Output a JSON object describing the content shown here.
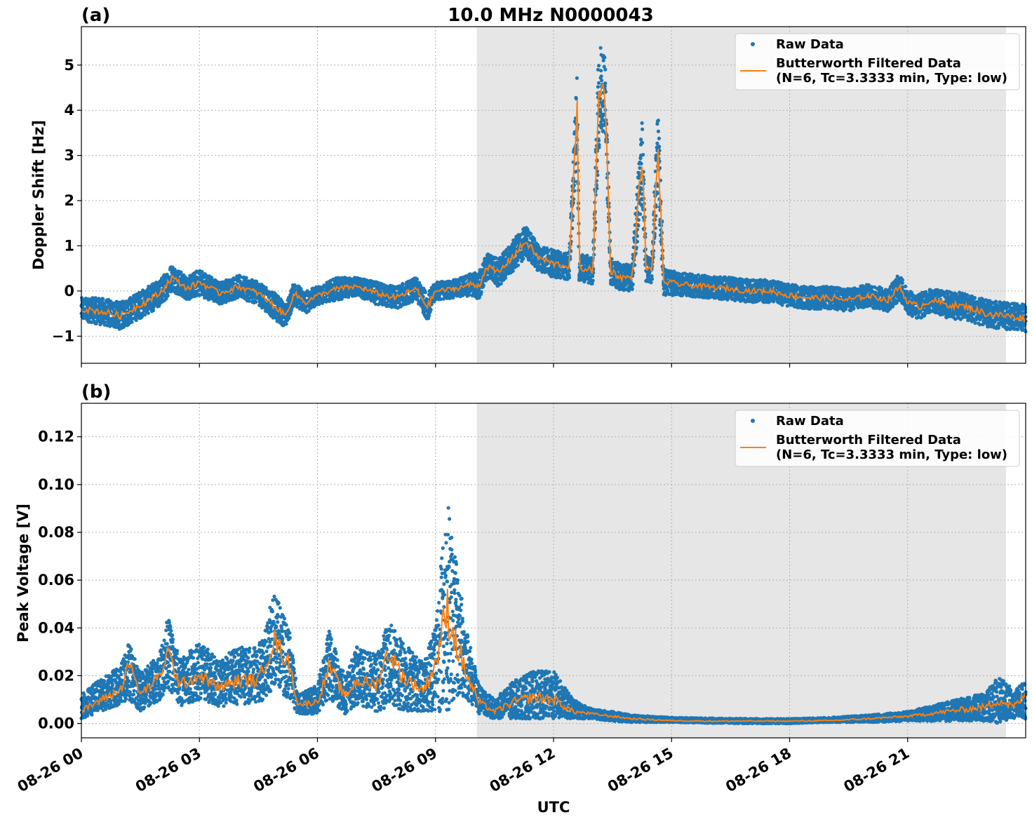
{
  "figure": {
    "title": "10.0 MHz N0000043",
    "xlabel": "UTC"
  },
  "chart_data": [
    {
      "type": "scatter",
      "panel_label": "(a)",
      "title": "10.0 MHz N0000043",
      "ylabel": "Doppler Shift [Hz]",
      "xlabel": "",
      "xlim": [
        0,
        24
      ],
      "ylim": [
        -1.6,
        5.85
      ],
      "yticks": [
        -1,
        0,
        1,
        2,
        3,
        4,
        5
      ],
      "ytick_labels": [
        "−1",
        "0",
        "1",
        "2",
        "3",
        "4",
        "5"
      ],
      "grid": true,
      "legend_placement": "top-right",
      "shaded_span_hours": [
        10.05,
        23.5
      ],
      "series": [
        {
          "name": "Raw Data",
          "kind": "points",
          "color": "#1f77b4",
          "x_hours": [
            0.0,
            0.5,
            1.0,
            1.5,
            2.0,
            2.3,
            2.7,
            3.0,
            3.5,
            4.0,
            4.5,
            5.0,
            5.2,
            5.4,
            5.7,
            6.0,
            6.5,
            7.0,
            7.5,
            8.0,
            8.5,
            8.8,
            9.0,
            9.5,
            9.9,
            10.1,
            10.3,
            10.6,
            11.0,
            11.3,
            11.6,
            12.0,
            12.4,
            12.6,
            12.65,
            12.8,
            13.0,
            13.15,
            13.3,
            13.45,
            13.7,
            14.0,
            14.25,
            14.35,
            14.5,
            14.65,
            14.8,
            15.2,
            15.8,
            16.5,
            17.0,
            17.5,
            18.0,
            18.5,
            19.0,
            19.5,
            20.0,
            20.5,
            20.8,
            21.0,
            21.3,
            21.6,
            22.0,
            22.5,
            23.0,
            23.5,
            24.0
          ],
          "y_hz": [
            -0.4,
            -0.45,
            -0.55,
            -0.3,
            -0.05,
            0.3,
            0.05,
            0.2,
            -0.05,
            0.1,
            -0.05,
            -0.4,
            -0.55,
            -0.05,
            -0.25,
            -0.1,
            0.05,
            0.1,
            -0.05,
            -0.15,
            0.05,
            -0.35,
            0.0,
            0.05,
            0.15,
            0.1,
            0.55,
            0.4,
            0.8,
            1.1,
            0.75,
            0.6,
            0.55,
            4.1,
            0.5,
            0.5,
            0.45,
            4.3,
            4.6,
            0.45,
            0.3,
            0.3,
            3.0,
            0.5,
            0.45,
            3.2,
            0.2,
            0.15,
            0.1,
            0.05,
            0.0,
            0.0,
            -0.1,
            -0.15,
            -0.15,
            -0.2,
            -0.1,
            -0.2,
            0.1,
            -0.25,
            -0.35,
            -0.2,
            -0.3,
            -0.35,
            -0.5,
            -0.55,
            -0.6
          ],
          "spread_hz": [
            0.25,
            0.3,
            0.3,
            0.3,
            0.3,
            0.3,
            0.25,
            0.3,
            0.25,
            0.25,
            0.25,
            0.3,
            0.25,
            0.25,
            0.25,
            0.2,
            0.25,
            0.2,
            0.25,
            0.25,
            0.25,
            0.3,
            0.2,
            0.2,
            0.25,
            0.3,
            0.3,
            0.3,
            0.35,
            0.35,
            0.3,
            0.3,
            0.3,
            0.9,
            0.3,
            0.3,
            0.3,
            1.2,
            0.9,
            0.3,
            0.3,
            0.3,
            1.0,
            0.3,
            0.3,
            1.0,
            0.3,
            0.25,
            0.25,
            0.25,
            0.25,
            0.25,
            0.25,
            0.25,
            0.25,
            0.25,
            0.25,
            0.25,
            0.3,
            0.25,
            0.3,
            0.25,
            0.3,
            0.3,
            0.3,
            0.3,
            0.3
          ]
        },
        {
          "name": "Butterworth Filtered Data\n(N=6, Tc=3.3333 min, Type: low)",
          "legend_lines": [
            "Butterworth Filtered Data",
            "(N=6, Tc=3.3333 min, Type: low)"
          ],
          "kind": "line",
          "color": "#ff7f0e",
          "x_hours": [
            0.0,
            0.5,
            1.0,
            1.5,
            2.0,
            2.3,
            2.7,
            3.0,
            3.5,
            4.0,
            4.5,
            5.0,
            5.2,
            5.4,
            5.7,
            6.0,
            6.5,
            7.0,
            7.5,
            8.0,
            8.5,
            8.8,
            9.0,
            9.5,
            9.9,
            10.1,
            10.3,
            10.6,
            11.0,
            11.3,
            11.6,
            12.0,
            12.4,
            12.6,
            12.65,
            12.8,
            13.0,
            13.15,
            13.3,
            13.45,
            13.7,
            14.0,
            14.25,
            14.35,
            14.5,
            14.65,
            14.8,
            15.2,
            15.8,
            16.5,
            17.0,
            17.5,
            18.0,
            18.5,
            19.0,
            19.5,
            20.0,
            20.5,
            20.8,
            21.0,
            21.3,
            21.6,
            22.0,
            22.5,
            23.0,
            23.5,
            24.0
          ],
          "y_hz": [
            -0.4,
            -0.45,
            -0.55,
            -0.3,
            -0.05,
            0.3,
            0.05,
            0.2,
            -0.05,
            0.1,
            -0.05,
            -0.4,
            -0.55,
            -0.05,
            -0.25,
            -0.1,
            0.05,
            0.1,
            -0.05,
            -0.15,
            0.05,
            -0.35,
            0.0,
            0.05,
            0.15,
            0.1,
            0.55,
            0.4,
            0.8,
            1.1,
            0.75,
            0.6,
            0.55,
            4.1,
            0.5,
            0.5,
            0.45,
            4.3,
            4.6,
            0.45,
            0.3,
            0.3,
            3.0,
            0.5,
            0.45,
            3.2,
            0.2,
            0.15,
            0.1,
            0.05,
            0.0,
            0.0,
            -0.1,
            -0.15,
            -0.15,
            -0.2,
            -0.1,
            -0.2,
            0.1,
            -0.25,
            -0.35,
            -0.2,
            -0.3,
            -0.35,
            -0.5,
            -0.55,
            -0.6
          ]
        }
      ]
    },
    {
      "type": "scatter",
      "panel_label": "(b)",
      "title": "",
      "ylabel": "Peak Voltage [V]",
      "xlabel": "UTC",
      "xlim": [
        0,
        24
      ],
      "ylim": [
        -0.006,
        0.134
      ],
      "yticks": [
        0.0,
        0.02,
        0.04,
        0.06,
        0.08,
        0.1,
        0.12
      ],
      "ytick_labels": [
        "0.00",
        "0.02",
        "0.04",
        "0.06",
        "0.08",
        "0.10",
        "0.12"
      ],
      "grid": true,
      "legend_placement": "top-right",
      "shaded_span_hours": [
        10.05,
        23.5
      ],
      "series": [
        {
          "name": "Raw Data",
          "kind": "points",
          "color": "#1f77b4",
          "x_hours": [
            0.0,
            0.5,
            1.0,
            1.2,
            1.5,
            2.0,
            2.2,
            2.5,
            3.0,
            3.5,
            4.0,
            4.5,
            4.9,
            5.3,
            5.5,
            6.0,
            6.3,
            6.7,
            7.0,
            7.5,
            7.8,
            8.2,
            8.7,
            9.0,
            9.3,
            9.5,
            9.8,
            10.1,
            10.5,
            11.0,
            11.5,
            12.0,
            12.5,
            13.0,
            13.5,
            14.0,
            15.0,
            16.0,
            17.0,
            18.0,
            19.0,
            20.0,
            21.0,
            21.5,
            22.0,
            22.5,
            23.0,
            23.3,
            23.7,
            24.0
          ],
          "y_v": [
            0.007,
            0.012,
            0.016,
            0.022,
            0.013,
            0.02,
            0.03,
            0.017,
            0.022,
            0.017,
            0.02,
            0.02,
            0.035,
            0.025,
            0.008,
            0.01,
            0.025,
            0.012,
            0.02,
            0.017,
            0.025,
            0.02,
            0.015,
            0.025,
            0.05,
            0.04,
            0.025,
            0.01,
            0.006,
            0.01,
            0.012,
            0.012,
            0.006,
            0.004,
            0.003,
            0.002,
            0.0015,
            0.0012,
            0.001,
            0.001,
            0.0015,
            0.002,
            0.003,
            0.004,
            0.005,
            0.006,
            0.007,
            0.01,
            0.008,
            0.01
          ],
          "spread_v": [
            0.005,
            0.007,
            0.008,
            0.012,
            0.008,
            0.01,
            0.015,
            0.01,
            0.012,
            0.01,
            0.012,
            0.012,
            0.02,
            0.015,
            0.004,
            0.006,
            0.015,
            0.008,
            0.012,
            0.012,
            0.018,
            0.015,
            0.01,
            0.02,
            0.045,
            0.03,
            0.015,
            0.006,
            0.004,
            0.008,
            0.01,
            0.01,
            0.004,
            0.002,
            0.002,
            0.0015,
            0.001,
            0.001,
            0.001,
            0.001,
            0.001,
            0.0015,
            0.002,
            0.003,
            0.004,
            0.005,
            0.006,
            0.01,
            0.006,
            0.008
          ]
        },
        {
          "name": "Butterworth Filtered Data\n(N=6, Tc=3.3333 min, Type: low)",
          "legend_lines": [
            "Butterworth Filtered Data",
            "(N=6, Tc=3.3333 min, Type: low)"
          ],
          "kind": "line",
          "color": "#ff7f0e",
          "x_hours": [
            0.0,
            0.5,
            1.0,
            1.2,
            1.5,
            2.0,
            2.2,
            2.5,
            3.0,
            3.5,
            4.0,
            4.5,
            4.9,
            5.3,
            5.5,
            6.0,
            6.3,
            6.7,
            7.0,
            7.5,
            7.8,
            8.2,
            8.7,
            9.0,
            9.3,
            9.5,
            9.8,
            10.1,
            10.5,
            11.0,
            11.5,
            12.0,
            12.5,
            13.0,
            13.5,
            14.0,
            15.0,
            16.0,
            17.0,
            18.0,
            19.0,
            20.0,
            21.0,
            21.5,
            22.0,
            22.5,
            23.0,
            23.3,
            23.7,
            24.0
          ],
          "y_v": [
            0.005,
            0.01,
            0.014,
            0.026,
            0.012,
            0.02,
            0.03,
            0.016,
            0.02,
            0.015,
            0.018,
            0.018,
            0.035,
            0.024,
            0.008,
            0.009,
            0.024,
            0.011,
            0.018,
            0.016,
            0.03,
            0.019,
            0.014,
            0.025,
            0.048,
            0.035,
            0.02,
            0.009,
            0.005,
            0.009,
            0.011,
            0.01,
            0.005,
            0.004,
            0.003,
            0.002,
            0.0012,
            0.001,
            0.001,
            0.001,
            0.0012,
            0.002,
            0.003,
            0.004,
            0.005,
            0.006,
            0.007,
            0.01,
            0.007,
            0.012
          ]
        }
      ]
    }
  ],
  "xaxis": {
    "tick_hours": [
      0,
      3,
      6,
      9,
      12,
      15,
      18,
      21
    ],
    "tick_labels": [
      "08-26 00",
      "08-26 03",
      "08-26 06",
      "08-26 09",
      "08-26 12",
      "08-26 15",
      "08-26 18",
      "08-26 21"
    ]
  },
  "legend": {
    "raw_label": "Raw Data",
    "filt_line1": "Butterworth Filtered Data",
    "filt_line2": "(N=6, Tc=3.3333 min, Type: low)"
  },
  "colors": {
    "raw": "#1f77b4",
    "filtered": "#ff7f0e",
    "shade": "#e6e6e6",
    "grid": "#b0b0b0"
  }
}
